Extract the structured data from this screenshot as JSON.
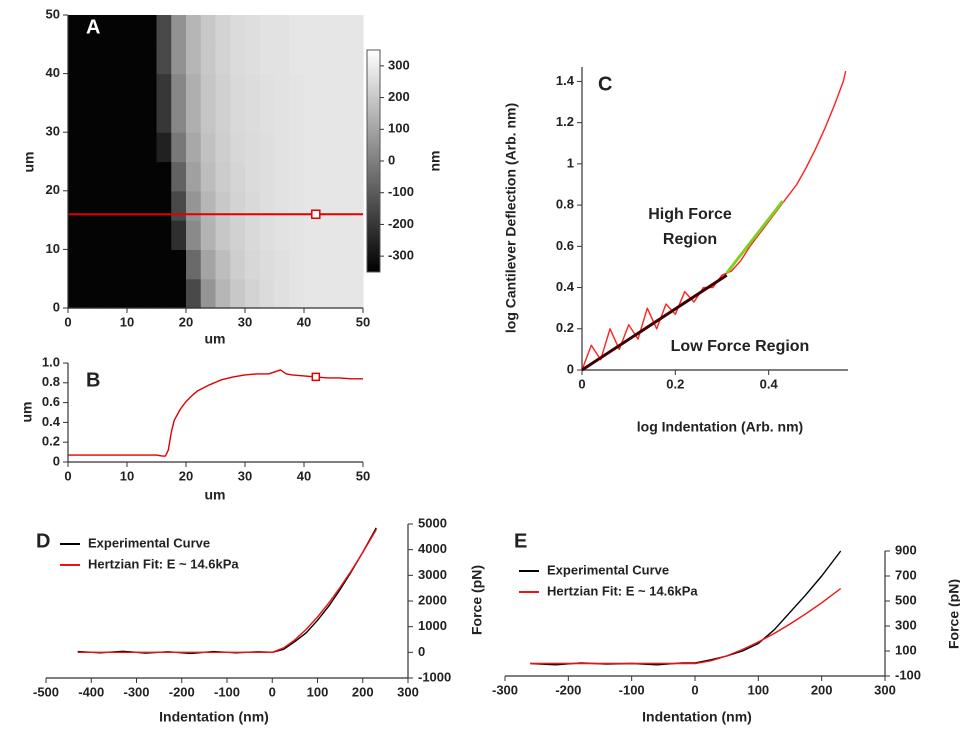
{
  "chart_data": [
    {
      "type": "heatmap",
      "panel_label": "A",
      "x_label": "um",
      "y_label": "um",
      "colorbar_label": "nm",
      "xlim": [
        0,
        50
      ],
      "ylim": [
        0,
        50
      ],
      "xticks": [
        0,
        10,
        20,
        30,
        40,
        50
      ],
      "yticks": [
        0,
        10,
        20,
        30,
        40,
        50
      ],
      "zlim": [
        -350,
        350
      ],
      "zticks": [
        -300,
        -200,
        -100,
        0,
        100,
        200,
        300
      ],
      "z": [
        [
          -340,
          -340,
          -340,
          -340,
          -340,
          -340,
          -340,
          -340,
          -150,
          60,
          150,
          200,
          230,
          250,
          265,
          275,
          280,
          280,
          280,
          280
        ],
        [
          -340,
          -340,
          -340,
          -340,
          -340,
          -340,
          -340,
          -340,
          -60,
          100,
          170,
          215,
          240,
          255,
          265,
          275,
          280,
          280,
          280,
          280
        ],
        [
          -340,
          -340,
          -340,
          -340,
          -340,
          -340,
          -340,
          -220,
          30,
          140,
          195,
          225,
          245,
          260,
          270,
          275,
          280,
          280,
          280,
          280
        ],
        [
          -340,
          -340,
          -340,
          -340,
          -340,
          -340,
          -340,
          -150,
          60,
          150,
          200,
          230,
          245,
          260,
          270,
          275,
          280,
          280,
          280,
          280
        ],
        [
          -340,
          -340,
          -340,
          -340,
          -340,
          -340,
          -340,
          -80,
          90,
          170,
          210,
          235,
          250,
          260,
          270,
          275,
          280,
          280,
          280,
          280
        ],
        [
          -340,
          -340,
          -340,
          -340,
          -340,
          -340,
          -260,
          -20,
          110,
          180,
          215,
          240,
          250,
          260,
          270,
          275,
          280,
          280,
          280,
          280
        ],
        [
          -340,
          -340,
          -340,
          -340,
          -340,
          -340,
          -200,
          20,
          130,
          190,
          220,
          245,
          255,
          265,
          270,
          275,
          280,
          280,
          280,
          280
        ],
        [
          -340,
          -340,
          -340,
          -340,
          -340,
          -340,
          -200,
          20,
          130,
          190,
          220,
          245,
          255,
          265,
          270,
          275,
          280,
          280,
          280,
          280
        ],
        [
          -340,
          -340,
          -340,
          -340,
          -340,
          -340,
          -150,
          50,
          150,
          200,
          230,
          250,
          260,
          270,
          270,
          280,
          280,
          280,
          280,
          280
        ],
        [
          -340,
          -340,
          -340,
          -340,
          -340,
          -340,
          -150,
          50,
          150,
          200,
          230,
          250,
          260,
          270,
          270,
          280,
          280,
          280,
          280,
          280
        ]
      ],
      "line_y": 16,
      "marker_x": 42,
      "line_color": "#e00000"
    },
    {
      "type": "line",
      "panel_label": "B",
      "x_label": "um",
      "y_label": "um",
      "xlim": [
        0,
        50
      ],
      "ylim": [
        0,
        1.0
      ],
      "xticks": [
        0,
        10,
        20,
        30,
        40,
        50
      ],
      "yticks": [
        0,
        0.2,
        0.4,
        0.6,
        0.8,
        {
          "value": 1,
          "label": "1.0"
        }
      ],
      "x": [
        0,
        4,
        8,
        12,
        15,
        16,
        16.5,
        17,
        17.5,
        18,
        19,
        20,
        21,
        22,
        24,
        26,
        28,
        30,
        32,
        34,
        35,
        36,
        37,
        38,
        40,
        42,
        44,
        46,
        48,
        50
      ],
      "series": [
        {
          "color": "#e00000",
          "values": [
            0.07,
            0.07,
            0.07,
            0.07,
            0.07,
            0.06,
            0.06,
            0.12,
            0.3,
            0.42,
            0.53,
            0.61,
            0.67,
            0.72,
            0.78,
            0.83,
            0.86,
            0.88,
            0.89,
            0.89,
            0.91,
            0.93,
            0.89,
            0.88,
            0.87,
            0.86,
            0.85,
            0.85,
            0.84,
            0.84
          ]
        }
      ],
      "marker_x": 42
    },
    {
      "type": "line",
      "panel_label": "C",
      "x_label": "log Indentation (Arb. nm)",
      "y_label": "log Cantilever Deflection (Arb. nm)",
      "xlim": [
        0,
        0.57
      ],
      "ylim": [
        0,
        1.47
      ],
      "xticks": [
        0,
        0.2,
        0.4
      ],
      "yticks": [
        0,
        0.2,
        0.4,
        0.6,
        0.8,
        1,
        1.2,
        1.4
      ],
      "x": [
        0,
        0.02,
        0.04,
        0.06,
        0.08,
        0.1,
        0.12,
        0.14,
        0.16,
        0.18,
        0.2,
        0.22,
        0.24,
        0.26,
        0.28,
        0.3,
        0.32,
        0.34,
        0.36,
        0.38,
        0.4,
        0.42,
        0.44,
        0.46,
        0.48,
        0.5,
        0.52,
        0.54,
        0.56,
        0.565
      ],
      "series": [
        {
          "color": "#ff2020",
          "values": [
            0,
            0.12,
            0.05,
            0.2,
            0.1,
            0.22,
            0.15,
            0.3,
            0.2,
            0.32,
            0.27,
            0.38,
            0.33,
            0.4,
            0.4,
            0.46,
            0.48,
            0.53,
            0.6,
            0.66,
            0.72,
            0.78,
            0.84,
            0.9,
            0.98,
            1.07,
            1.17,
            1.28,
            1.4,
            1.45
          ]
        },
        {
          "color": "#400000",
          "x": [
            0,
            0.31
          ],
          "values": [
            0,
            0.46
          ]
        },
        {
          "color": "#7ed321",
          "x": [
            0.31,
            0.43
          ],
          "values": [
            0.47,
            0.82
          ]
        }
      ],
      "annotations": [
        "High Force",
        "Region",
        "Low Force Region"
      ]
    },
    {
      "type": "line",
      "panel_label": "D",
      "x_label": "Indentation (nm)",
      "y_label": "Force (pN)",
      "yaxis_side": "right",
      "legend": "upper left",
      "xlim": [
        -500,
        300
      ],
      "ylim": [
        -1000,
        5000
      ],
      "xticks": [
        -500,
        -400,
        -300,
        -200,
        -100,
        0,
        100,
        200,
        300
      ],
      "yticks": [
        -1000,
        0,
        1000,
        2000,
        3000,
        4000,
        5000
      ],
      "x": [
        -430,
        -380,
        -330,
        -280,
        -230,
        -180,
        -130,
        -80,
        -30,
        0,
        25,
        50,
        75,
        100,
        125,
        150,
        175,
        200,
        230
      ],
      "series": [
        {
          "name": "Experimental Curve",
          "color": "#000000",
          "values": [
            30,
            -20,
            40,
            -30,
            20,
            -40,
            30,
            -20,
            20,
            0,
            120,
            420,
            760,
            1250,
            1800,
            2450,
            3150,
            3900,
            4850
          ]
        },
        {
          "name": "Hertzian Fit: E ~ 14.6kPa",
          "color": "#ee1111",
          "values": [
            0,
            0,
            0,
            0,
            0,
            0,
            0,
            0,
            0,
            0,
            172,
            487,
            894,
            1376,
            1923,
            2528,
            3186,
            3892,
            4787
          ]
        }
      ]
    },
    {
      "type": "line",
      "panel_label": "E",
      "x_label": "Indentation (nm)",
      "y_label": "Force (pN)",
      "yaxis_side": "right",
      "legend": "upper left",
      "xlim": [
        -300,
        300
      ],
      "ylim": [
        -100,
        900
      ],
      "xticks": [
        -300,
        -200,
        -100,
        0,
        100,
        200,
        300
      ],
      "yticks": [
        -100,
        100,
        300,
        500,
        700,
        900
      ],
      "x": [
        -260,
        -220,
        -180,
        -140,
        -100,
        -60,
        -20,
        0,
        25,
        50,
        75,
        100,
        125,
        150,
        175,
        200,
        230
      ],
      "series": [
        {
          "name": "Experimental Curve",
          "color": "#000000",
          "values": [
            0,
            -10,
            5,
            -5,
            0,
            -10,
            5,
            5,
            30,
            60,
            100,
            160,
            270,
            410,
            550,
            700,
            900
          ]
        },
        {
          "name": "Hertzian Fit: E ~ 14.6kPa",
          "color": "#ee1111",
          "values": [
            0,
            0,
            0,
            0,
            0,
            0,
            0,
            0,
            22,
            61,
            112,
            172,
            240,
            316,
            398,
            486,
            600
          ]
        }
      ]
    }
  ]
}
